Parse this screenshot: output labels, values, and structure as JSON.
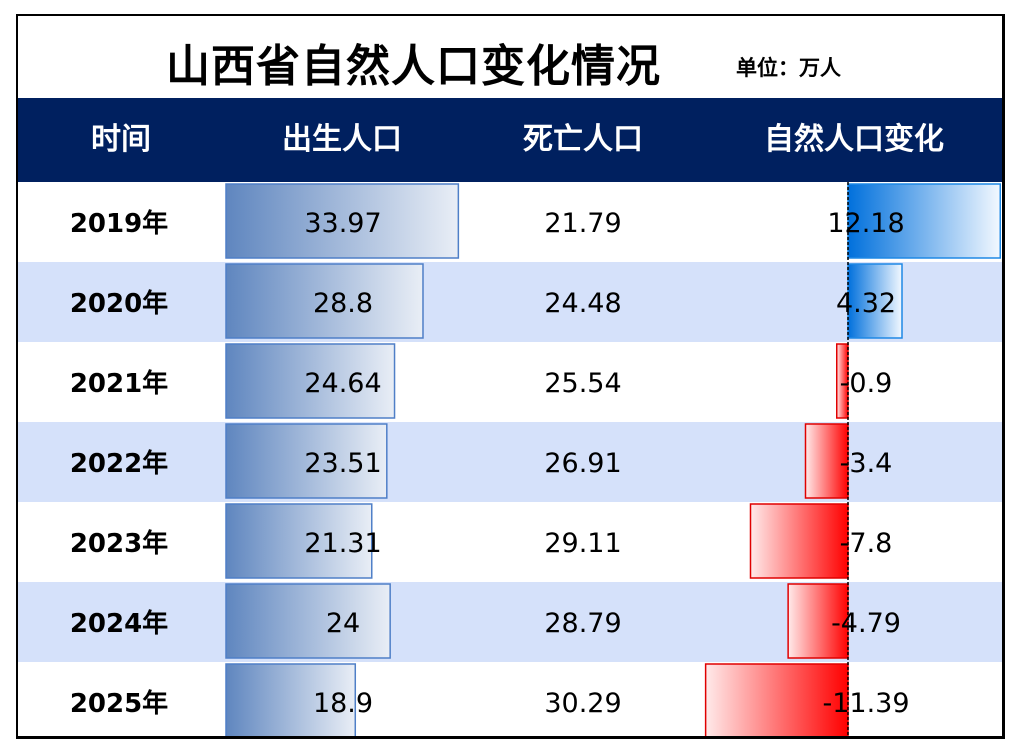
{
  "title": "山西省自然人口变化情况",
  "unit": "单位：万人",
  "headers": {
    "time": "时间",
    "births": "出生人口",
    "deaths": "死亡人口",
    "natural_change": "自然人口变化"
  },
  "colors": {
    "header_bg": "#00205f",
    "row_alt": "#d5e1fa",
    "birth_bar_dark": "#6a8fc4",
    "birth_bar_light": "#e7edf6",
    "positive_dark": "#0077e0",
    "negative_dark": "#ff0000"
  },
  "chart_data": {
    "type": "table",
    "rows": [
      {
        "year": "2019年",
        "births": "33.97",
        "deaths": "21.79",
        "change": "12.18"
      },
      {
        "year": "2020年",
        "births": "28.8",
        "deaths": "24.48",
        "change": "4.32"
      },
      {
        "year": "2021年",
        "births": "24.64",
        "deaths": "25.54",
        "change": "-0.9"
      },
      {
        "year": "2022年",
        "births": "23.51",
        "deaths": "26.91",
        "change": "-3.4"
      },
      {
        "year": "2023年",
        "births": "21.31",
        "deaths": "29.11",
        "change": "-7.8"
      },
      {
        "year": "2024年",
        "births": "24",
        "deaths": "28.79",
        "change": "-4.79"
      },
      {
        "year": "2025年",
        "births": "18.9",
        "deaths": "30.29",
        "change": "-11.39"
      }
    ]
  }
}
